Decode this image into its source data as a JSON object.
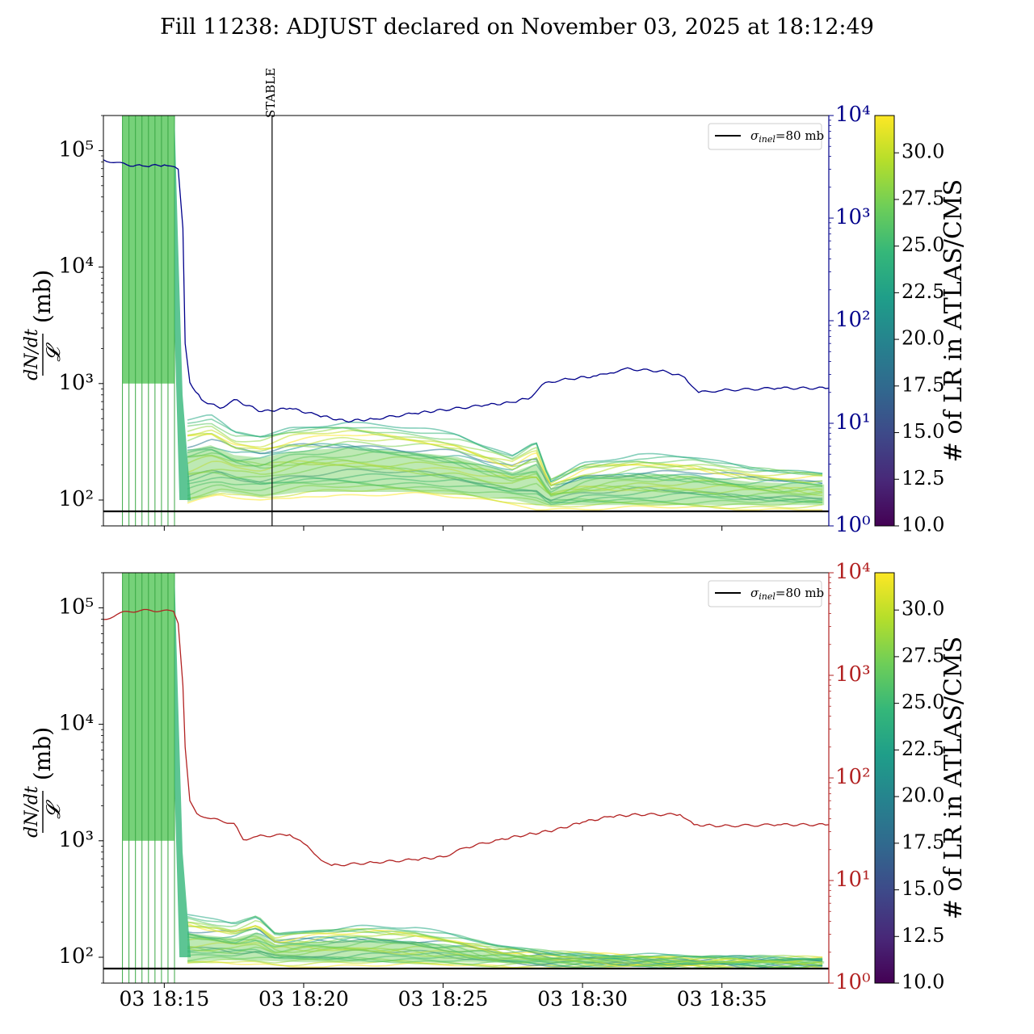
{
  "title": "Fill 11238: ADJUST declared on November 03, 2025 at 18:12:49",
  "chart_data": [
    {
      "type": "line",
      "panel": "top",
      "ylabel_numerator": "dN/dt",
      "ylabel_denominator": "𝓛",
      "ylabel_unit": "(mb)",
      "yscale": "log",
      "ylim": [
        60,
        200000
      ],
      "y_ticks": [
        "10²",
        "10³",
        "10⁴",
        "10⁵"
      ],
      "y2scale": "log",
      "y2lim": [
        1,
        10000
      ],
      "y2_ticks": [
        "10⁰",
        "10¹",
        "10²",
        "10³",
        "10⁴"
      ],
      "y2_color": "#00008b",
      "x_ticks": [
        "03 18:15",
        "03 18:20",
        "03 18:25",
        "03 18:30",
        "03 18:35"
      ],
      "xlim": [
        "18:12:49",
        "18:38:50"
      ],
      "annotation_label": "STABLE",
      "annotation_time": "18:18:52",
      "reference_line": {
        "label": "σ_inel=80 mb",
        "label_sigma": "σ",
        "label_sub": "inel",
        "label_rest": "=80 mb",
        "value": 80
      },
      "right_series": {
        "color": "#00008b",
        "points": [
          [
            "18:12:49",
            3700
          ],
          [
            "18:13:40",
            3300
          ],
          [
            "18:14:20",
            3200
          ],
          [
            "18:15:00",
            3300
          ],
          [
            "18:15:30",
            3000
          ],
          [
            "18:15:40",
            800
          ],
          [
            "18:15:45",
            60
          ],
          [
            "18:15:55",
            25
          ],
          [
            "18:16:20",
            17
          ],
          [
            "18:17:00",
            14
          ],
          [
            "18:17:30",
            17
          ],
          [
            "18:18:30",
            13
          ],
          [
            "18:19:30",
            14
          ],
          [
            "18:20:30",
            12
          ],
          [
            "18:21:30",
            10.5
          ],
          [
            "18:22:30",
            11
          ],
          [
            "18:24:00",
            12.5
          ],
          [
            "18:25:00",
            13.5
          ],
          [
            "18:26:30",
            15
          ],
          [
            "18:27:30",
            16
          ],
          [
            "18:28:10",
            18
          ],
          [
            "18:28:40",
            25
          ],
          [
            "18:29:30",
            27
          ],
          [
            "18:30:30",
            29
          ],
          [
            "18:31:00",
            31
          ],
          [
            "18:31:30",
            34
          ],
          [
            "18:33:00",
            32
          ],
          [
            "18:33:40",
            28
          ],
          [
            "18:34:10",
            20
          ],
          [
            "18:35:00",
            21
          ],
          [
            "18:37:00",
            22
          ],
          [
            "18:38:50",
            22
          ]
        ]
      },
      "band_series": {
        "color_range": [
          "#fde725",
          "#21918c"
        ],
        "low": [
          [
            "18:15:50",
            90
          ],
          [
            "18:17:00",
            110
          ],
          [
            "18:18:30",
            100
          ],
          [
            "18:20:00",
            110
          ],
          [
            "18:22:00",
            110
          ],
          [
            "18:24:00",
            110
          ],
          [
            "18:25:30",
            105
          ],
          [
            "18:27:30",
            95
          ],
          [
            "18:28:20",
            85
          ],
          [
            "18:29:00",
            85
          ],
          [
            "18:33:00",
            85
          ],
          [
            "18:38:40",
            85
          ]
        ],
        "high": [
          [
            "18:15:50",
            480
          ],
          [
            "18:16:40",
            520
          ],
          [
            "18:17:30",
            380
          ],
          [
            "18:18:30",
            360
          ],
          [
            "18:19:30",
            420
          ],
          [
            "18:21:30",
            470
          ],
          [
            "18:23:00",
            430
          ],
          [
            "18:24:30",
            390
          ],
          [
            "18:25:30",
            360
          ],
          [
            "18:26:30",
            290
          ],
          [
            "18:27:30",
            240
          ],
          [
            "18:28:20",
            330
          ],
          [
            "18:28:50",
            150
          ],
          [
            "18:30:00",
            210
          ],
          [
            "18:32:00",
            240
          ],
          [
            "18:34:00",
            230
          ],
          [
            "18:36:00",
            190
          ],
          [
            "18:38:40",
            175
          ]
        ]
      },
      "colorbar": {
        "label": "# of LR in ATLAS/CMS",
        "range": [
          10.0,
          32.0
        ],
        "ticks": [
          "10.0",
          "12.5",
          "15.0",
          "17.5",
          "20.0",
          "22.5",
          "25.0",
          "27.5",
          "30.0"
        ]
      }
    },
    {
      "type": "line",
      "panel": "bottom",
      "ylabel_numerator": "dN/dt",
      "ylabel_denominator": "𝓛",
      "ylabel_unit": "(mb)",
      "yscale": "log",
      "ylim": [
        60,
        200000
      ],
      "y_ticks": [
        "10²",
        "10³",
        "10⁴",
        "10⁵"
      ],
      "y2scale": "log",
      "y2lim": [
        1,
        10000
      ],
      "y2_ticks": [
        "10⁰",
        "10¹",
        "10²",
        "10³",
        "10⁴"
      ],
      "y2_color": "#b22222",
      "x_ticks": [
        "03 18:15",
        "03 18:20",
        "03 18:25",
        "03 18:30",
        "03 18:35"
      ],
      "xlim": [
        "18:12:49",
        "18:38:50"
      ],
      "reference_line": {
        "label": "σ_inel=80 mb",
        "label_sigma": "σ",
        "label_sub": "inel",
        "label_rest": "=80 mb",
        "value": 80
      },
      "right_series": {
        "color": "#b22222",
        "points": [
          [
            "18:12:49",
            3500
          ],
          [
            "18:13:40",
            4200
          ],
          [
            "18:14:30",
            4300
          ],
          [
            "18:15:20",
            4200
          ],
          [
            "18:15:30",
            3200
          ],
          [
            "18:15:40",
            800
          ],
          [
            "18:15:45",
            200
          ],
          [
            "18:15:55",
            60
          ],
          [
            "18:16:10",
            45
          ],
          [
            "18:16:40",
            40
          ],
          [
            "18:17:30",
            36
          ],
          [
            "18:17:50",
            25
          ],
          [
            "18:18:20",
            27
          ],
          [
            "18:19:30",
            28
          ],
          [
            "18:20:00",
            23
          ],
          [
            "18:20:30",
            17
          ],
          [
            "18:21:00",
            14
          ],
          [
            "18:22:30",
            15
          ],
          [
            "18:24:00",
            16
          ],
          [
            "18:25:00",
            17
          ],
          [
            "18:25:50",
            21
          ],
          [
            "18:27:00",
            25
          ],
          [
            "18:28:00",
            28
          ],
          [
            "18:29:00",
            31
          ],
          [
            "18:30:00",
            37
          ],
          [
            "18:31:00",
            42
          ],
          [
            "18:32:00",
            44
          ],
          [
            "18:33:30",
            44
          ],
          [
            "18:34:00",
            35
          ],
          [
            "18:35:00",
            34
          ],
          [
            "18:37:00",
            35
          ],
          [
            "18:38:50",
            35
          ]
        ]
      },
      "band_series": {
        "color_range": [
          "#fde725",
          "#21918c"
        ],
        "low": [
          [
            "18:15:50",
            85
          ],
          [
            "18:17:00",
            90
          ],
          [
            "18:20:00",
            85
          ],
          [
            "18:25:00",
            85
          ],
          [
            "18:30:00",
            83
          ],
          [
            "18:38:40",
            83
          ]
        ],
        "high": [
          [
            "18:15:50",
            230
          ],
          [
            "18:16:30",
            210
          ],
          [
            "18:17:30",
            190
          ],
          [
            "18:18:20",
            230
          ],
          [
            "18:19:00",
            160
          ],
          [
            "18:20:30",
            175
          ],
          [
            "18:22:00",
            185
          ],
          [
            "18:24:00",
            175
          ],
          [
            "18:25:30",
            150
          ],
          [
            "18:27:00",
            125
          ],
          [
            "18:29:00",
            110
          ],
          [
            "18:31:00",
            105
          ],
          [
            "18:34:00",
            100
          ],
          [
            "18:38:40",
            98
          ]
        ]
      },
      "colorbar": {
        "label": "# of LR in ATLAS/CMS",
        "range": [
          10.0,
          32.0
        ],
        "ticks": [
          "10.0",
          "12.5",
          "15.0",
          "17.5",
          "20.0",
          "22.5",
          "25.0",
          "27.5",
          "30.0"
        ]
      }
    }
  ]
}
